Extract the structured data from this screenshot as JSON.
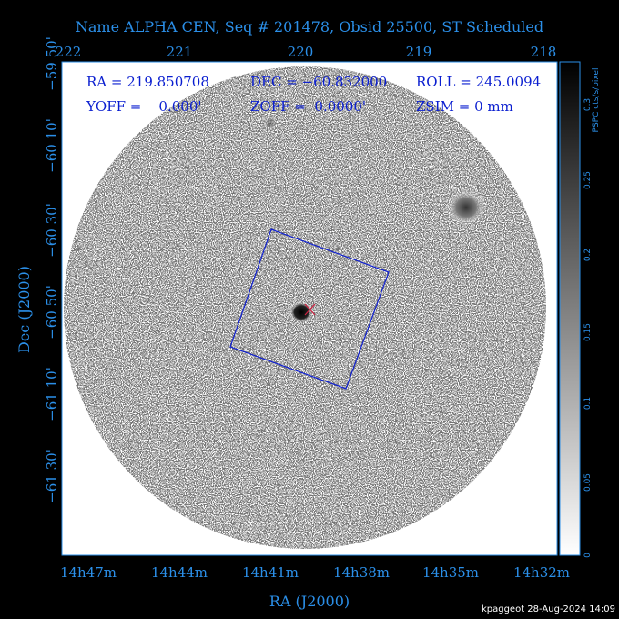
{
  "title": "Name ALPHA CEN, Seq # 201478, Obsid 25500, ST Scheduled",
  "info": [
    "RA = 219.850708",
    "DEC = −60.832000",
    "ROLL = 245.0094",
    "YOFF =    0.000'",
    "ZOFF =  0.0000'",
    "ZSIM = 0 mm"
  ],
  "top_axis": {
    "ticks": [
      "222",
      "221",
      "220",
      "219",
      "218"
    ]
  },
  "left_axis": {
    "label": "Dec (J2000)",
    "ticks": [
      "−59 50'",
      "−60 10'",
      "−60 30'",
      "−60 50'",
      "−61 10'",
      "−61 30'"
    ]
  },
  "bottom_axis": {
    "label": "RA (J2000)",
    "ticks": [
      "14h47m",
      "14h44m",
      "14h41m",
      "14h38m",
      "14h35m",
      "14h32m"
    ]
  },
  "colorbar": {
    "label": "PSPC cts/s/pixel",
    "ticks": [
      "0",
      "0.05",
      "0.1",
      "0.15",
      "0.2",
      "0.25",
      "0.3"
    ]
  },
  "footer": "kpaggeot 28-Aug-2024 14:09"
}
